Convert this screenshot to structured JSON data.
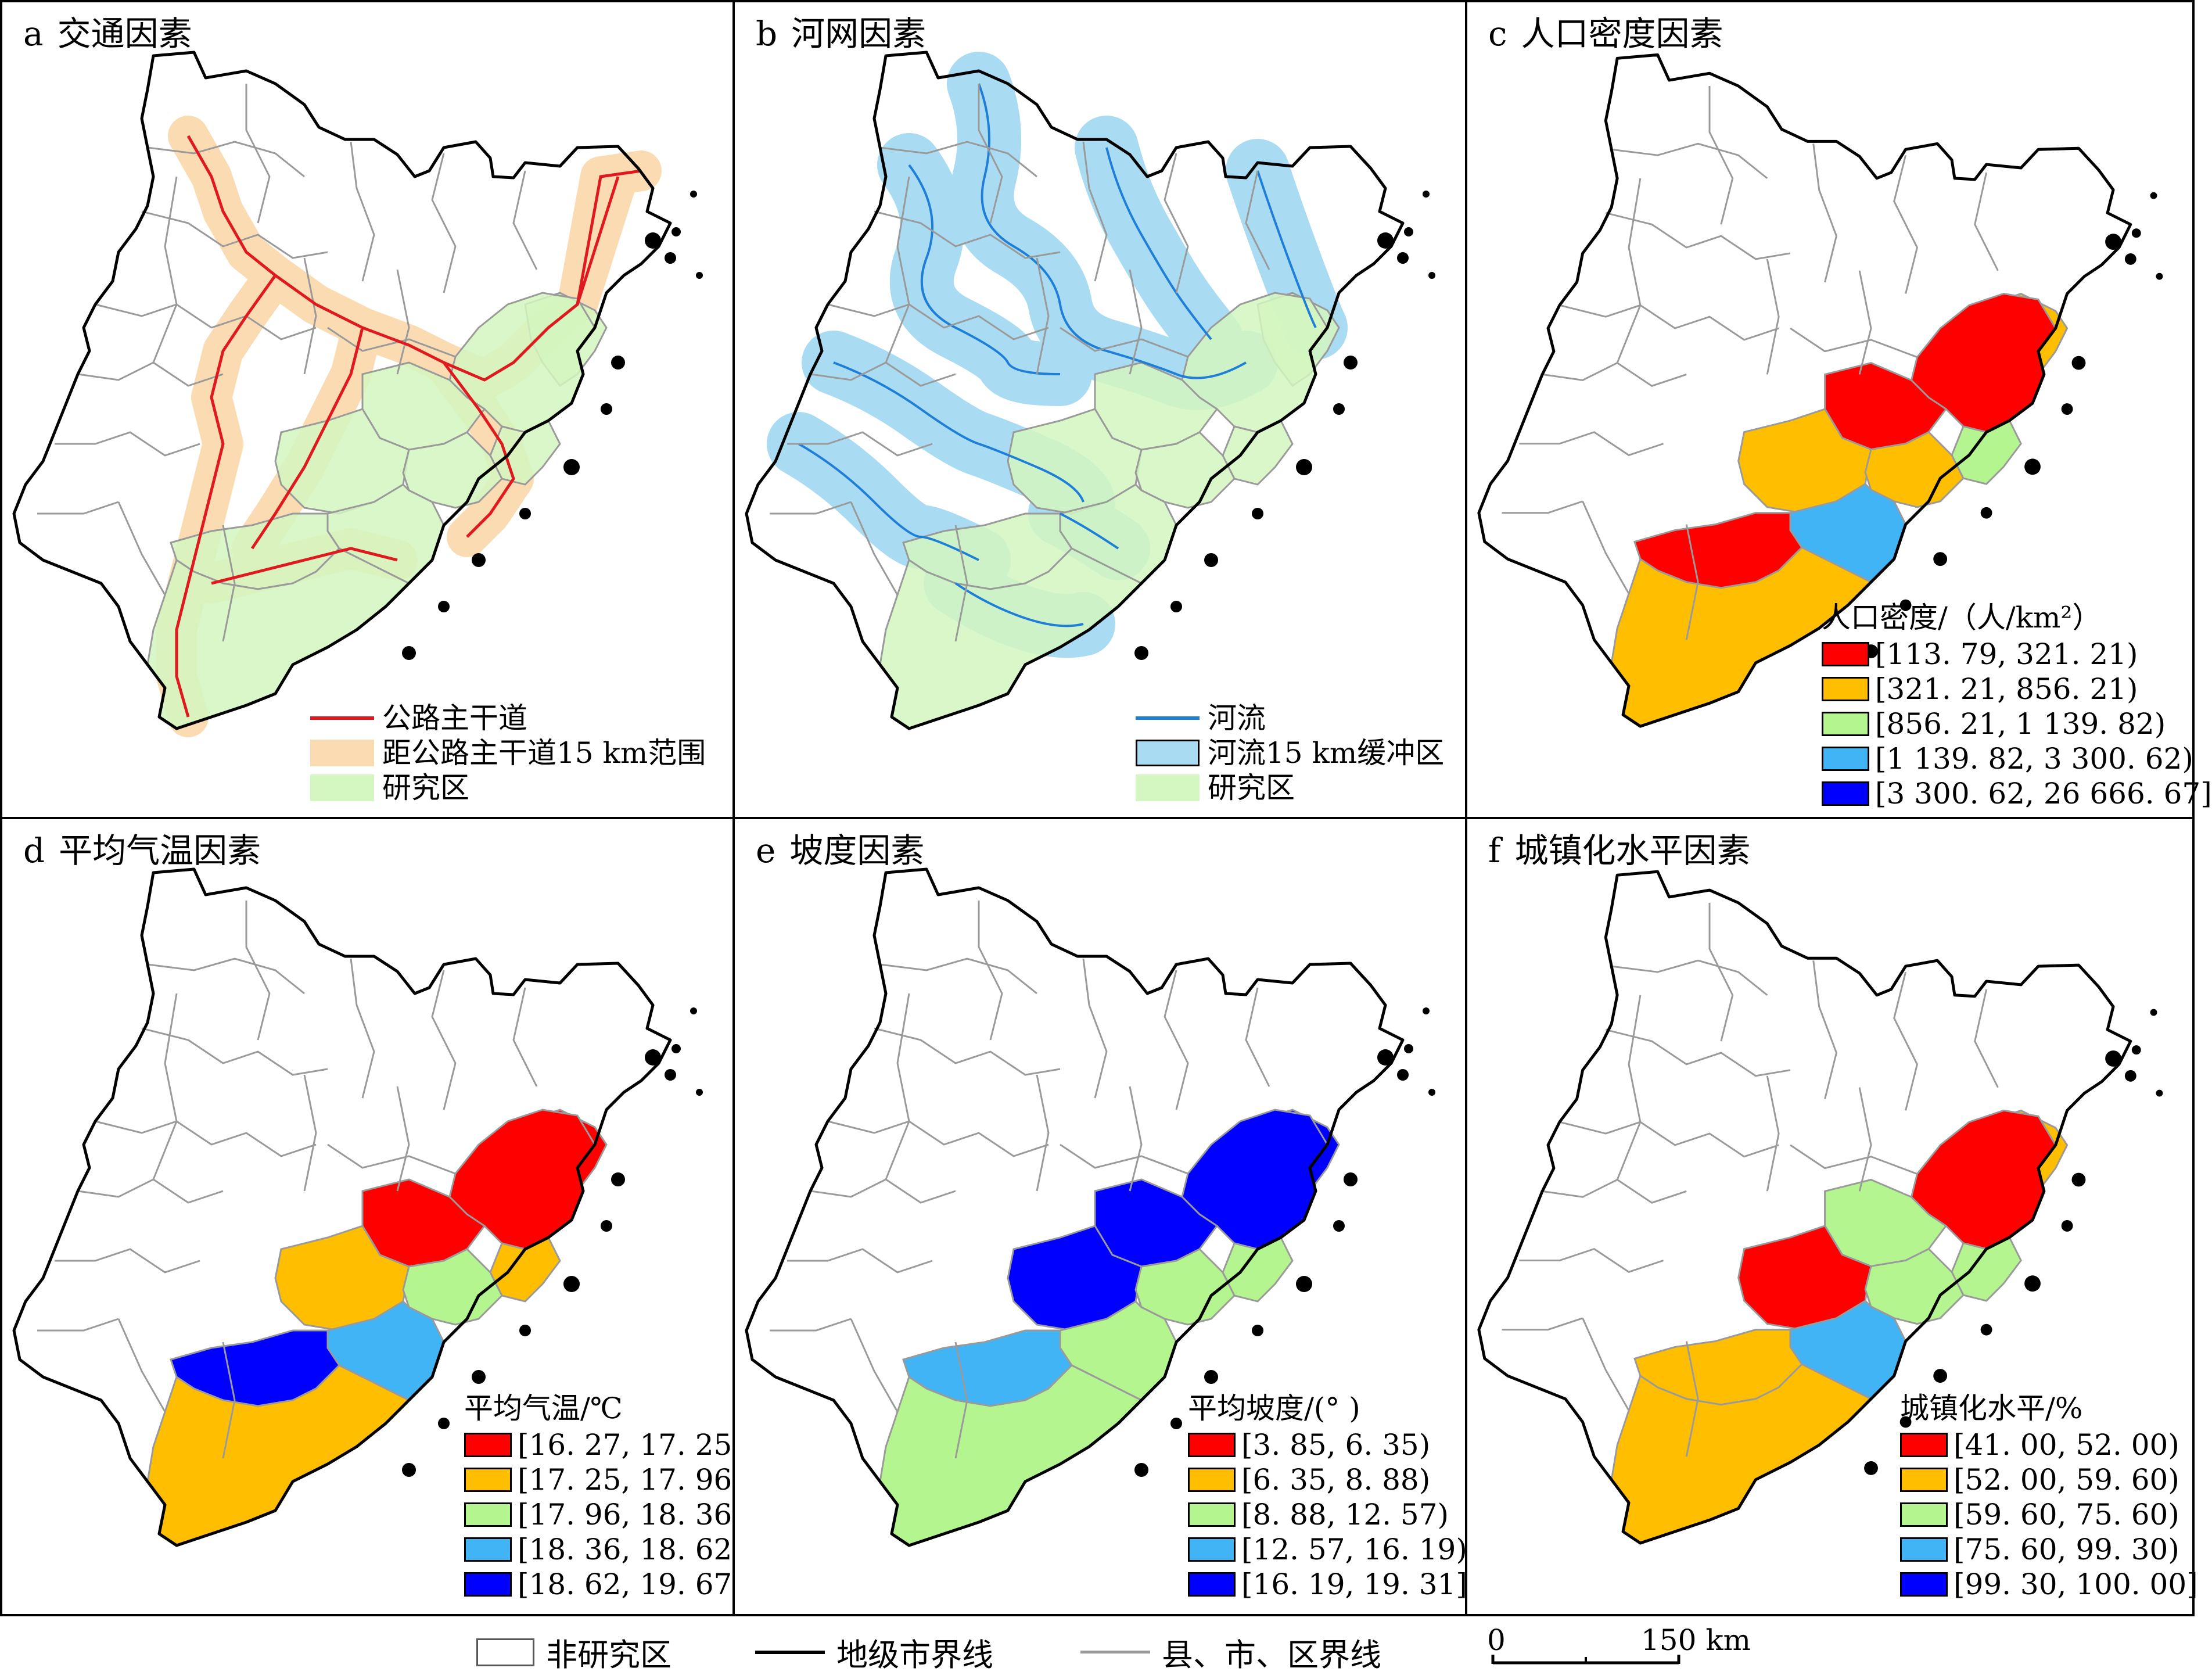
{
  "panels": [
    {
      "letter": "a",
      "title": "交通因素",
      "legend": {
        "items": [
          {
            "type": "line",
            "color": "#e0191e",
            "label": "公路主干道"
          },
          {
            "type": "fill",
            "color": "#fbdcb2",
            "label": "距公路主干道15 km范围"
          },
          {
            "type": "fill",
            "color": "#d4f6c0",
            "label": "研究区"
          }
        ]
      }
    },
    {
      "letter": "b",
      "title": "河网因素",
      "legend": {
        "items": [
          {
            "type": "line",
            "color": "#1f7fd8",
            "label": "河流"
          },
          {
            "type": "fill",
            "color": "#a9dcf2",
            "label": "河流15 km缓冲区",
            "border": "#000000"
          },
          {
            "type": "fill",
            "color": "#d4f6c0",
            "label": "研究区"
          }
        ]
      }
    },
    {
      "letter": "c",
      "title": "人口密度因素",
      "legend": {
        "title": "人口密度/（人/km²）",
        "classes": [
          {
            "color": "#ff0000",
            "label": "[113. 79, 321. 21)"
          },
          {
            "color": "#ffbe00",
            "label": "[321. 21, 856. 21)"
          },
          {
            "color": "#b4f590",
            "label": "[856. 21, 1 139. 82)"
          },
          {
            "color": "#41b4f5",
            "label": "[1 139. 82, 3 300. 62)"
          },
          {
            "color": "#0000ff",
            "label": "[3 300. 62, 26 666. 67]"
          }
        ]
      }
    },
    {
      "letter": "d",
      "title": "平均气温因素",
      "legend": {
        "title": "平均气温/℃",
        "classes": [
          {
            "color": "#ff0000",
            "label": "[16. 27, 17. 25)"
          },
          {
            "color": "#ffbe00",
            "label": "[17. 25, 17. 96)"
          },
          {
            "color": "#b4f590",
            "label": "[17. 96, 18. 36)"
          },
          {
            "color": "#41b4f5",
            "label": "[18. 36, 18. 62)"
          },
          {
            "color": "#0000ff",
            "label": "[18. 62, 19. 67]"
          }
        ]
      }
    },
    {
      "letter": "e",
      "title": "坡度因素",
      "legend": {
        "title": "平均坡度/(°  )",
        "classes": [
          {
            "color": "#ff0000",
            "label": "[3. 85, 6. 35)"
          },
          {
            "color": "#ffbe00",
            "label": "[6. 35, 8. 88)"
          },
          {
            "color": "#b4f590",
            "label": "[8. 88, 12. 57)"
          },
          {
            "color": "#41b4f5",
            "label": "[12. 57, 16. 19)"
          },
          {
            "color": "#0000ff",
            "label": "[16. 19, 19. 31]"
          }
        ]
      }
    },
    {
      "letter": "f",
      "title": "城镇化水平因素",
      "legend": {
        "title": "城镇化水平/%",
        "classes": [
          {
            "color": "#ff0000",
            "label": "[41. 00, 52. 00)"
          },
          {
            "color": "#ffbe00",
            "label": "[52. 00, 59. 60)"
          },
          {
            "color": "#b4f590",
            "label": "[59. 60, 75. 60)"
          },
          {
            "color": "#41b4f5",
            "label": "[75. 60, 99. 30)"
          },
          {
            "color": "#0000ff",
            "label": "[99. 30, 100. 00]"
          }
        ]
      }
    }
  ],
  "common_legend": {
    "non_study": "非研究区",
    "prefecture_line": "地级市界线",
    "county_line": "县、市、区界线"
  },
  "scale": {
    "zero": "0",
    "value": "150 km"
  },
  "colors": {
    "outline": "#000000",
    "county": "#9a9a9a",
    "non_study_fill": "#ffffff"
  }
}
